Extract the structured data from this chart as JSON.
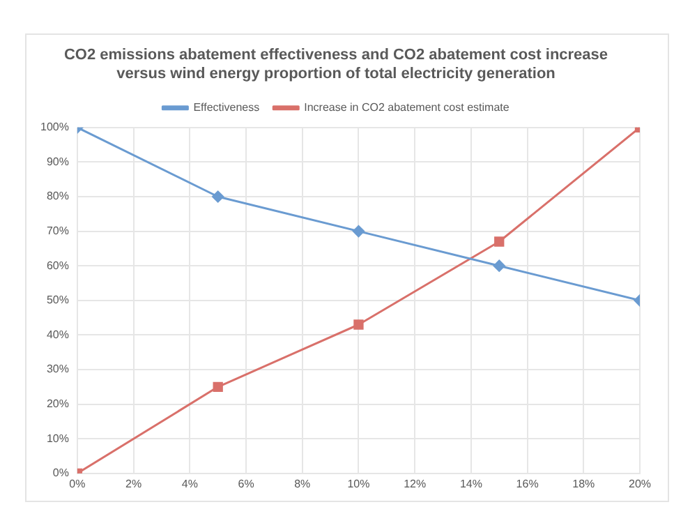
{
  "chart_data": {
    "type": "line",
    "title": "CO2 emissions abatement effectiveness and CO2 abatement cost increase\nversus wind energy proportion of total electricity generation",
    "x": [
      0,
      5,
      10,
      15,
      20
    ],
    "series": [
      {
        "name": "Effectiveness",
        "color": "#6a9bd1",
        "marker": "diamond",
        "values": [
          100,
          80,
          70,
          60,
          50
        ]
      },
      {
        "name": "Increase in CO2 abatement cost estimate",
        "color": "#d9706a",
        "marker": "square",
        "values": [
          0,
          25,
          43,
          67,
          100
        ]
      }
    ],
    "xlim": [
      0,
      20
    ],
    "xticks": [
      {
        "value": 0,
        "label": "0%"
      },
      {
        "value": 2,
        "label": "2%"
      },
      {
        "value": 4,
        "label": "4%"
      },
      {
        "value": 6,
        "label": "6%"
      },
      {
        "value": 8,
        "label": "8%"
      },
      {
        "value": 10,
        "label": "10%"
      },
      {
        "value": 12,
        "label": "12%"
      },
      {
        "value": 14,
        "label": "14%"
      },
      {
        "value": 16,
        "label": "16%"
      },
      {
        "value": 18,
        "label": "18%"
      },
      {
        "value": 20,
        "label": "20%"
      }
    ],
    "ylim": [
      0,
      100
    ],
    "yticks": [
      {
        "value": 0,
        "label": "0%"
      },
      {
        "value": 10,
        "label": "10%"
      },
      {
        "value": 20,
        "label": "20%"
      },
      {
        "value": 30,
        "label": "30%"
      },
      {
        "value": 40,
        "label": "40%"
      },
      {
        "value": 50,
        "label": "50%"
      },
      {
        "value": 60,
        "label": "60%"
      },
      {
        "value": 70,
        "label": "70%"
      },
      {
        "value": 80,
        "label": "80%"
      },
      {
        "value": 90,
        "label": "90%"
      },
      {
        "value": 100,
        "label": "100%"
      }
    ],
    "grid": true,
    "legend": "top"
  }
}
